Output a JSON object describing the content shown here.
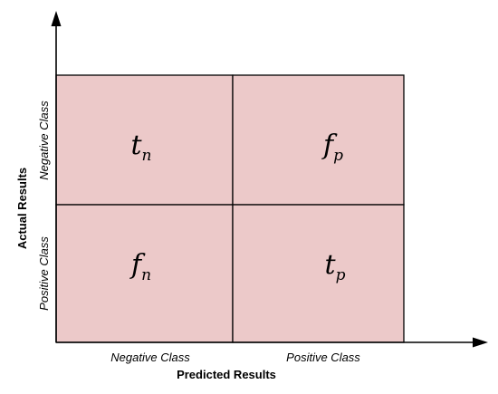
{
  "matrix": {
    "cells": [
      {
        "main": "t",
        "sub": "n"
      },
      {
        "main": "f",
        "sub": "p"
      },
      {
        "main": "f",
        "sub": "n"
      },
      {
        "main": "t",
        "sub": "p"
      }
    ],
    "cell_color": "#ecc9c9",
    "line_color": "#000000"
  },
  "x_axis": {
    "title": "Predicted Results",
    "labels": [
      "Negative Class",
      "Positive Class"
    ]
  },
  "y_axis": {
    "title": "Actual Results",
    "labels": [
      "Negative Class",
      "Positive Class"
    ]
  }
}
